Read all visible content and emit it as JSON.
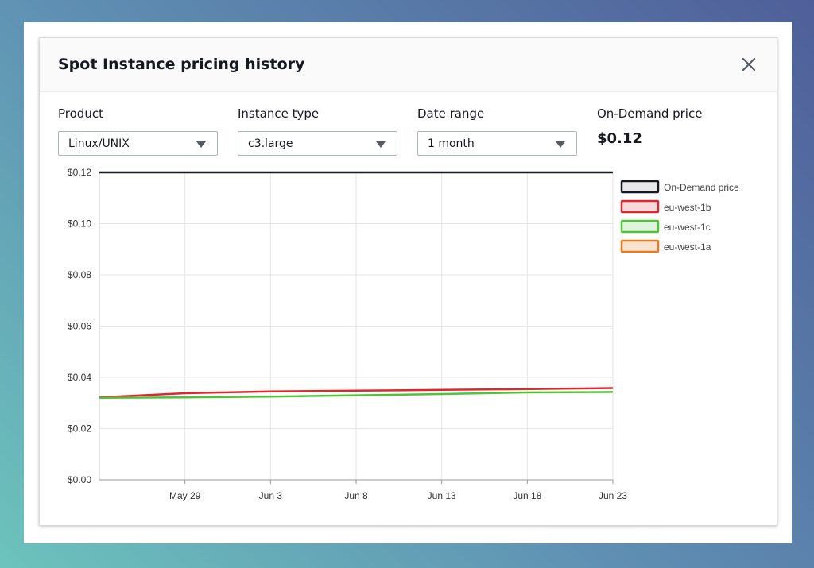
{
  "modal": {
    "title": "Spot Instance pricing history",
    "close_icon": "close-icon"
  },
  "filters": {
    "product": {
      "label": "Product",
      "value": "Linux/UNIX"
    },
    "instance_type": {
      "label": "Instance type",
      "value": "c3.large"
    },
    "date_range": {
      "label": "Date range",
      "value": "1 month"
    },
    "on_demand": {
      "label": "On-Demand price",
      "value": "$0.12"
    }
  },
  "chart_data": {
    "type": "line",
    "title": "",
    "xlabel": "",
    "ylabel": "",
    "x_range": [
      "2019-05-24",
      "2019-06-23"
    ],
    "ylim": [
      0,
      0.12
    ],
    "y_ticks": [
      0,
      0.02,
      0.04,
      0.06,
      0.08,
      0.1,
      0.12
    ],
    "y_tick_labels": [
      "$0.00",
      "$0.02",
      "$0.04",
      "$0.06",
      "$0.08",
      "$0.10",
      "$0.12"
    ],
    "x_ticks": [
      "2019-05-29",
      "2019-06-03",
      "2019-06-08",
      "2019-06-13",
      "2019-06-18",
      "2019-06-23"
    ],
    "x_tick_labels": [
      "May 29",
      "Jun 3",
      "Jun 8",
      "Jun 13",
      "Jun 18",
      "Jun 23"
    ],
    "grid": true,
    "legend_position": "right",
    "series": [
      {
        "name": "On-Demand price",
        "color": "#16191f",
        "x": [
          "2019-05-24",
          "2019-06-23"
        ],
        "values": [
          0.12,
          0.12
        ]
      },
      {
        "name": "eu-west-1b",
        "color": "#e0272b",
        "x": [
          "2019-05-24",
          "2019-05-29",
          "2019-06-03",
          "2019-06-08",
          "2019-06-13",
          "2019-06-18",
          "2019-06-23"
        ],
        "values": [
          0.0322,
          0.0338,
          0.0345,
          0.0348,
          0.0351,
          0.0354,
          0.0358
        ]
      },
      {
        "name": "eu-west-1c",
        "color": "#4fc435",
        "x": [
          "2019-05-24",
          "2019-05-29",
          "2019-06-03",
          "2019-06-08",
          "2019-06-13",
          "2019-06-18",
          "2019-06-23"
        ],
        "values": [
          0.032,
          0.0322,
          0.0325,
          0.033,
          0.0335,
          0.0341,
          0.0343
        ]
      },
      {
        "name": "eu-west-1a",
        "color": "#ec7a1c",
        "x": [],
        "values": []
      }
    ]
  }
}
